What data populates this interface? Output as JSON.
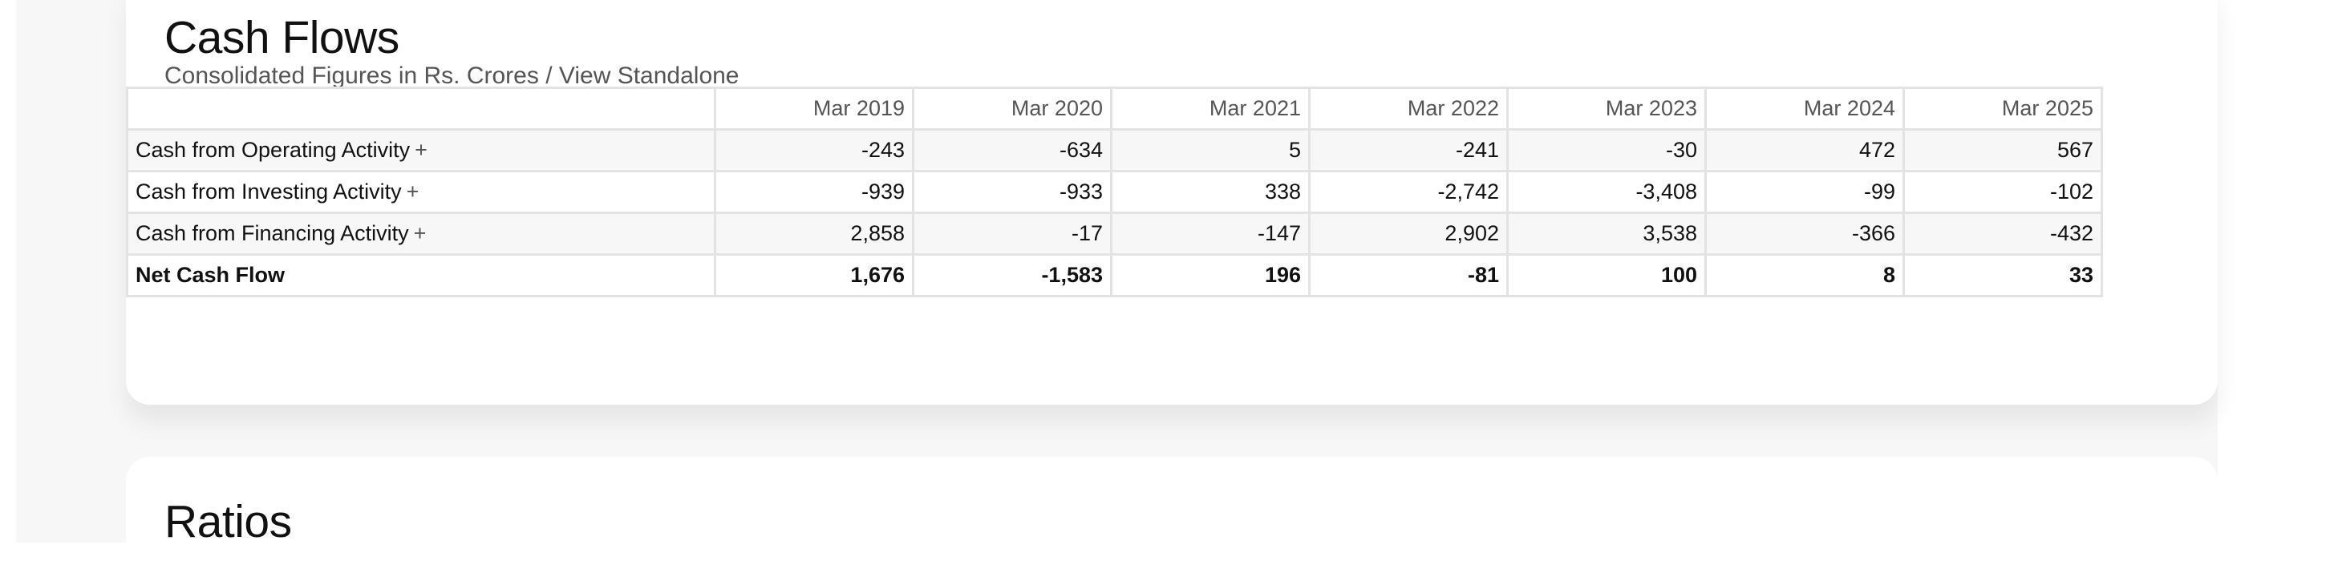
{
  "cash_flows": {
    "title": "Cash Flows",
    "subtitle_prefix": "Consolidated Figures in Rs. Crores / ",
    "subtitle_link": "View Standalone",
    "columns": [
      "Mar 2019",
      "Mar 2020",
      "Mar 2021",
      "Mar 2022",
      "Mar 2023",
      "Mar 2024",
      "Mar 2025"
    ],
    "rows": [
      {
        "label": "Cash from Operating Activity",
        "expand": "+",
        "values": [
          "-243",
          "-634",
          "5",
          "-241",
          "-30",
          "472",
          "567"
        ]
      },
      {
        "label": "Cash from Investing Activity",
        "expand": "+",
        "values": [
          "-939",
          "-933",
          "338",
          "-2,742",
          "-3,408",
          "-99",
          "-102"
        ]
      },
      {
        "label": "Cash from Financing Activity",
        "expand": "+",
        "values": [
          "2,858",
          "-17",
          "-147",
          "2,902",
          "3,538",
          "-366",
          "-432"
        ]
      },
      {
        "label": "Net Cash Flow",
        "expand": "",
        "values": [
          "1,676",
          "-1,583",
          "196",
          "-81",
          "100",
          "8",
          "33"
        ]
      }
    ]
  },
  "ratios": {
    "title": "Ratios"
  }
}
